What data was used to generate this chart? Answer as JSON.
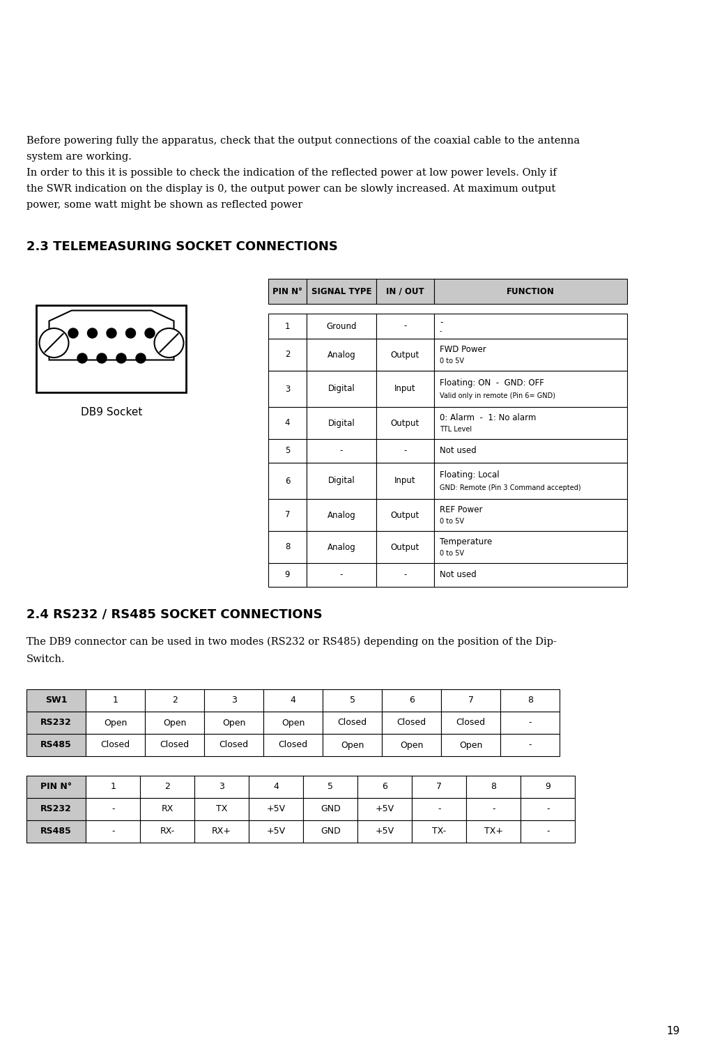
{
  "bg_color": "#ffffff",
  "page_number": "19",
  "intro_lines": [
    "Before powering fully the apparatus, check that the output connections of the coaxial cable to the antenna",
    "system are working.",
    "In order to this it is possible to check the indication of the reflected power at low power levels. Only if",
    "the SWR indication on the display is 0, the output power can be slowly increased. At maximum output",
    "power, some watt might be shown as reflected power"
  ],
  "section1_title": "2.3 TELEMEASURING SOCKET CONNECTIONS",
  "db9_label": "DB9 Socket",
  "tele_headers": [
    "PIN N°",
    "SIGNAL TYPE",
    "IN / OUT",
    "FUNCTION"
  ],
  "tele_rows": [
    [
      "1",
      "Ground",
      "-",
      "-",
      "-"
    ],
    [
      "2",
      "Analog",
      "Output",
      "FWD Power",
      "0 to 5V"
    ],
    [
      "3",
      "Digital",
      "Input",
      "Floating: ON  -  GND: OFF",
      "Valid only in remote (Pin 6= GND)"
    ],
    [
      "4",
      "Digital",
      "Output",
      "0: Alarm  -  1: No alarm",
      "TTL Level"
    ],
    [
      "5",
      "-",
      "-",
      "Not used",
      ""
    ],
    [
      "6",
      "Digital",
      "Input",
      "Floating: Local",
      "GND: Remote (Pin 3 Command accepted)"
    ],
    [
      "7",
      "Analog",
      "Output",
      "REF Power",
      "0 to 5V"
    ],
    [
      "8",
      "Analog",
      "Output",
      "Temperature",
      "0 to 5V"
    ],
    [
      "9",
      "-",
      "-",
      "Not used",
      ""
    ]
  ],
  "section2_title": "2.4 RS232 / RS485 SOCKET CONNECTIONS",
  "section2_text_line1": "The DB9 connector can be used in two modes (RS232 or RS485) depending on the position of the Dip-",
  "section2_text_line2": "Switch.",
  "sw1_headers": [
    "SW1",
    "1",
    "2",
    "3",
    "4",
    "5",
    "6",
    "7",
    "8"
  ],
  "sw1_rows": [
    [
      "RS232",
      "Open",
      "Open",
      "Open",
      "Open",
      "Closed",
      "Closed",
      "Closed",
      "-"
    ],
    [
      "RS485",
      "Closed",
      "Closed",
      "Closed",
      "Closed",
      "Open",
      "Open",
      "Open",
      "-"
    ]
  ],
  "pin_headers": [
    "PIN N°",
    "1",
    "2",
    "3",
    "4",
    "5",
    "6",
    "7",
    "8",
    "9"
  ],
  "pin_rows": [
    [
      "RS232",
      "-",
      "RX",
      "TX",
      "+5V",
      "GND",
      "+5V",
      "-",
      "-",
      "-"
    ],
    [
      "RS485",
      "-",
      "RX-",
      "RX+",
      "+5V",
      "GND",
      "+5V",
      "TX-",
      "TX+",
      "-"
    ]
  ],
  "header_bg": "#c8c8c8",
  "lc": "#000000",
  "text_color": "#000000",
  "ml": 0.038
}
